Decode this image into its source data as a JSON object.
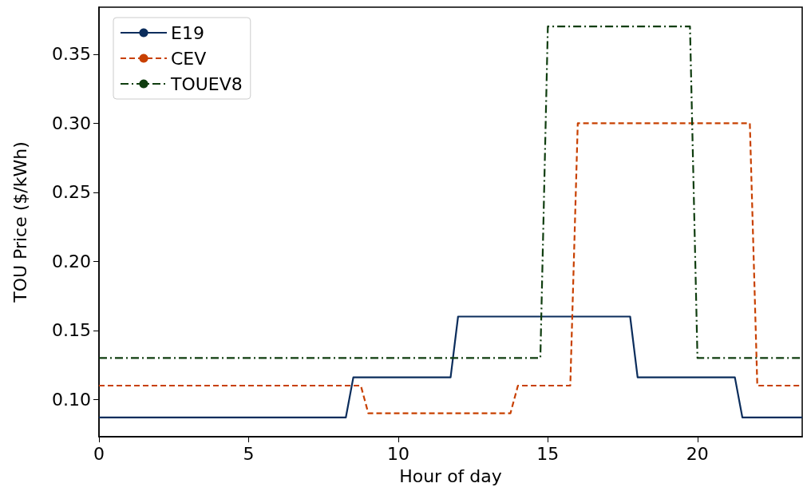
{
  "chart_data": {
    "type": "line",
    "xlabel": "Hour of day",
    "ylabel": "TOU Price ($/kWh)",
    "xlim": [
      0,
      23.5
    ],
    "xticks": [
      0,
      5,
      10,
      15,
      20
    ],
    "ylim": [
      0.073,
      0.384
    ],
    "yticks": [
      {
        "value": 0.1,
        "label": "0.10"
      },
      0.15,
      {
        "value": 0.2,
        "label": "0.20"
      },
      0.25,
      {
        "value": 0.3,
        "label": "0.30"
      },
      0.35
    ],
    "grid": false,
    "legend": "top left",
    "marker": "none",
    "series": [
      {
        "name": "E19",
        "color": "#0b2d5c",
        "line_style": "solid",
        "x": [
          0,
          8.25,
          8.5,
          11.75,
          12,
          17.75,
          18,
          21.25,
          21.5,
          23.5
        ],
        "values": [
          0.087,
          0.087,
          0.116,
          0.116,
          0.16,
          0.16,
          0.116,
          0.116,
          0.087,
          0.087
        ]
      },
      {
        "name": "CEV",
        "color": "#c84000",
        "line_style": "dashed",
        "x": [
          0,
          8.75,
          9,
          13.75,
          14,
          15.75,
          16,
          21.75,
          22,
          23.5
        ],
        "values": [
          0.11,
          0.11,
          0.09,
          0.09,
          0.11,
          0.11,
          0.3,
          0.3,
          0.11,
          0.11
        ]
      },
      {
        "name": "TOUEV8",
        "color": "#0f3d0f",
        "line_style": "dashdot",
        "x": [
          0,
          14.75,
          15,
          19.75,
          20,
          23.5
        ],
        "values": [
          0.13,
          0.13,
          0.37,
          0.37,
          0.13,
          0.13
        ]
      }
    ]
  }
}
